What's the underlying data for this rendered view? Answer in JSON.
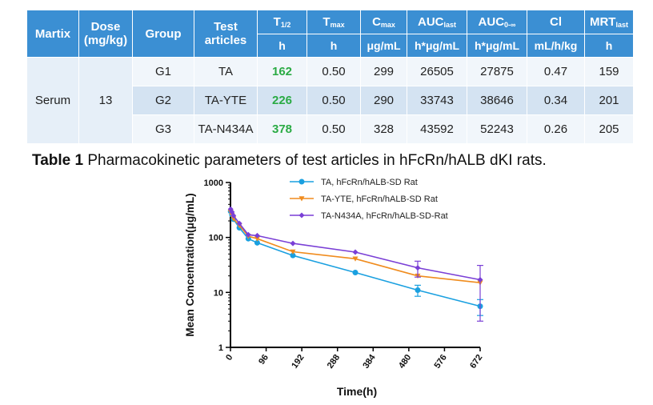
{
  "table": {
    "headers": {
      "martix": "Martix",
      "dose": "Dose",
      "dose_unit": "(mg/kg)",
      "group": "Group",
      "test": "Test",
      "articles": "articles",
      "t_half": "T",
      "t_half_sub": "1/2",
      "tmax": "T",
      "tmax_sub": "max",
      "cmax": "C",
      "cmax_sub": "max",
      "auc_last": "AUC",
      "auc_last_sub": "last",
      "auc_inf": "AUC",
      "auc_inf_sub": "0-∞",
      "cl": "Cl",
      "mrt": "MRT",
      "mrt_sub": "last"
    },
    "units": [
      "h",
      "h",
      "μg/mL",
      "h*μg/mL",
      "h*μg/mL",
      "mL/h/kg",
      "h"
    ],
    "matrix": "Serum",
    "dose": "13",
    "rows": [
      {
        "group": "G1",
        "article": "TA",
        "t_half": "162",
        "tmax": "0.50",
        "cmax": "299",
        "auc_last": "26505",
        "auc_inf": "27875",
        "cl": "0.47",
        "mrt": "159"
      },
      {
        "group": "G2",
        "article": "TA-YTE",
        "t_half": "226",
        "tmax": "0.50",
        "cmax": "290",
        "auc_last": "33743",
        "auc_inf": "38646",
        "cl": "0.34",
        "mrt": "201"
      },
      {
        "group": "G3",
        "article": "TA-N434A",
        "t_half": "378",
        "tmax": "0.50",
        "cmax": "328",
        "auc_last": "43592",
        "auc_inf": "52243",
        "cl": "0.26",
        "mrt": "205"
      }
    ],
    "caption_bold": "Table 1",
    "caption_text": " Pharmacokinetic parameters of test articles in hFcRn/hALB dKI rats."
  },
  "chart_data": {
    "type": "line",
    "title": "",
    "xlabel": "Time(h)",
    "ylabel": "Mean Concentration(μg/mL)",
    "xlim": [
      0,
      672
    ],
    "ylim": [
      1,
      1000
    ],
    "yscale": "log",
    "xticks": [
      0,
      96,
      192,
      288,
      384,
      480,
      576,
      672
    ],
    "yticks": [
      1,
      10,
      100,
      1000
    ],
    "legend_position": "top-right",
    "series": [
      {
        "name": "TA, hFcRn/hALB-SD Rat",
        "color": "#1aa0e0",
        "marker": "circle",
        "x": [
          0.5,
          4,
          8,
          24,
          48,
          72,
          168,
          336,
          504,
          672
        ],
        "y": [
          299,
          260,
          215,
          150,
          95,
          80,
          47,
          23,
          11,
          5.6
        ],
        "err": [
          0,
          0,
          0,
          0,
          0,
          0,
          0,
          0,
          2.5,
          1.8
        ]
      },
      {
        "name": "TA-YTE, hFcRn/hALB-SD Rat",
        "color": "#f08c1e",
        "marker": "triangle-down",
        "x": [
          0.5,
          4,
          8,
          24,
          48,
          72,
          168,
          336,
          504,
          672
        ],
        "y": [
          290,
          255,
          220,
          165,
          105,
          95,
          55,
          41,
          20,
          15
        ],
        "err": [
          0,
          0,
          0,
          0,
          0,
          0,
          0,
          0,
          0,
          0
        ]
      },
      {
        "name": "TA-N434A, hFcRn/hALB-SD-Rat",
        "color": "#7a3fd6",
        "marker": "diamond",
        "x": [
          0.5,
          4,
          8,
          24,
          48,
          72,
          168,
          336,
          504,
          672
        ],
        "y": [
          328,
          290,
          250,
          180,
          112,
          108,
          78,
          54,
          28,
          17
        ],
        "err": [
          0,
          0,
          0,
          0,
          0,
          0,
          0,
          0,
          9,
          14
        ]
      }
    ]
  }
}
